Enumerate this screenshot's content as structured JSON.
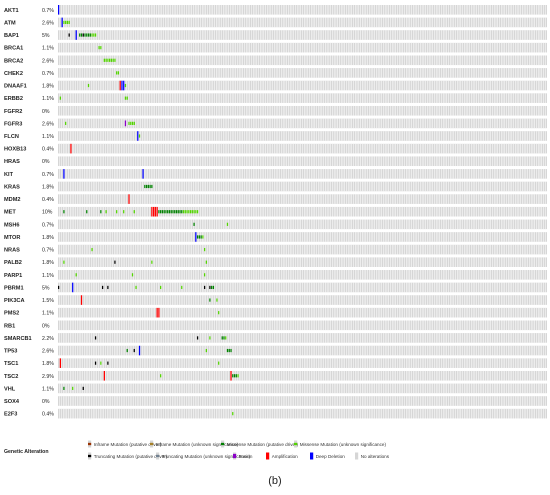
{
  "chart_data": {
    "type": "heatmap",
    "subtype": "oncoprint",
    "caption": "(b)",
    "genes": [
      {
        "name": "AKT1",
        "pct": "0.7%",
        "alterations": [
          {
            "x": 0,
            "type": "deep_deletion"
          }
        ]
      },
      {
        "name": "ATM",
        "pct": "2.6%",
        "alterations": [
          {
            "x": 2,
            "type": "deep_deletion"
          },
          {
            "x": 3,
            "type": "missense_unknown"
          },
          {
            "x": 4,
            "type": "missense_unknown"
          },
          {
            "x": 5,
            "type": "missense_unknown"
          },
          {
            "x": 6,
            "type": "missense_unknown"
          }
        ]
      },
      {
        "name": "BAP1",
        "pct": "5%",
        "alterations": [
          {
            "x": 6,
            "type": "truncating_driver"
          },
          {
            "x": 10,
            "type": "deep_deletion"
          },
          {
            "x": 12,
            "type": "missense_driver"
          },
          {
            "x": 13,
            "type": "missense_driver"
          },
          {
            "x": 14,
            "type": "truncating_driver"
          },
          {
            "x": 15,
            "type": "missense_driver"
          },
          {
            "x": 16,
            "type": "missense_driver"
          },
          {
            "x": 17,
            "type": "missense_driver"
          },
          {
            "x": 18,
            "type": "missense_driver"
          },
          {
            "x": 19,
            "type": "missense_unknown"
          },
          {
            "x": 20,
            "type": "missense_unknown"
          },
          {
            "x": 21,
            "type": "missense_unknown"
          }
        ]
      },
      {
        "name": "BRCA1",
        "pct": "1.1%",
        "alterations": [
          {
            "x": 23,
            "type": "missense_unknown"
          },
          {
            "x": 24,
            "type": "missense_unknown"
          }
        ]
      },
      {
        "name": "BRCA2",
        "pct": "2.6%",
        "alterations": [
          {
            "x": 26,
            "type": "missense_unknown"
          },
          {
            "x": 27,
            "type": "missense_unknown"
          },
          {
            "x": 28,
            "type": "missense_unknown"
          },
          {
            "x": 29,
            "type": "missense_unknown"
          },
          {
            "x": 30,
            "type": "missense_unknown"
          },
          {
            "x": 31,
            "type": "missense_unknown"
          },
          {
            "x": 32,
            "type": "missense_unknown"
          }
        ]
      },
      {
        "name": "CHEK2",
        "pct": "0.7%",
        "alterations": [
          {
            "x": 33,
            "type": "missense_unknown"
          },
          {
            "x": 34,
            "type": "missense_unknown"
          }
        ]
      },
      {
        "name": "DNAAF1",
        "pct": "1.8%",
        "alterations": [
          {
            "x": 17,
            "type": "missense_unknown"
          },
          {
            "x": 35,
            "type": "amplification"
          },
          {
            "x": 36,
            "type": "deep_deletion"
          },
          {
            "x": 37,
            "type": "deep_deletion"
          },
          {
            "x": 38,
            "type": "missense_unknown"
          }
        ]
      },
      {
        "name": "ERBB2",
        "pct": "1.1%",
        "alterations": [
          {
            "x": 1,
            "type": "missense_unknown"
          },
          {
            "x": 38,
            "type": "missense_unknown"
          },
          {
            "x": 39,
            "type": "missense_unknown"
          }
        ]
      },
      {
        "name": "FGFR2",
        "pct": "0%",
        "alterations": []
      },
      {
        "name": "FGFR3",
        "pct": "2.6%",
        "alterations": [
          {
            "x": 4,
            "type": "missense_unknown"
          },
          {
            "x": 38,
            "type": "fusion"
          },
          {
            "x": 40,
            "type": "missense_unknown"
          },
          {
            "x": 41,
            "type": "missense_unknown"
          },
          {
            "x": 42,
            "type": "missense_unknown"
          },
          {
            "x": 43,
            "type": "missense_unknown"
          }
        ]
      },
      {
        "name": "FLCN",
        "pct": "1.1%",
        "alterations": [
          {
            "x": 45,
            "type": "deep_deletion"
          },
          {
            "x": 46,
            "type": "missense_unknown"
          }
        ]
      },
      {
        "name": "HOXB13",
        "pct": "0.4%",
        "alterations": [
          {
            "x": 7,
            "type": "amplification"
          }
        ]
      },
      {
        "name": "HRAS",
        "pct": "0%",
        "alterations": []
      },
      {
        "name": "KIT",
        "pct": "0.7%",
        "alterations": [
          {
            "x": 3,
            "type": "deep_deletion"
          },
          {
            "x": 48,
            "type": "deep_deletion"
          }
        ]
      },
      {
        "name": "KRAS",
        "pct": "1.8%",
        "alterations": [
          {
            "x": 49,
            "type": "missense_driver"
          },
          {
            "x": 50,
            "type": "missense_driver"
          },
          {
            "x": 51,
            "type": "missense_driver"
          },
          {
            "x": 52,
            "type": "missense_driver"
          },
          {
            "x": 53,
            "type": "missense_driver"
          }
        ]
      },
      {
        "name": "MDM2",
        "pct": "0.4%",
        "alterations": [
          {
            "x": 40,
            "type": "amplification"
          }
        ]
      },
      {
        "name": "MET",
        "pct": "10%",
        "alterations": [
          {
            "x": 3,
            "type": "missense_driver"
          },
          {
            "x": 16,
            "type": "missense_driver"
          },
          {
            "x": 24,
            "type": "missense_driver"
          },
          {
            "x": 27,
            "type": "missense_unknown"
          },
          {
            "x": 33,
            "type": "missense_unknown"
          },
          {
            "x": 37,
            "type": "missense_unknown"
          },
          {
            "x": 43,
            "type": "missense_unknown"
          },
          {
            "x": 53,
            "type": "amplification"
          },
          {
            "x": 54,
            "type": "amplification"
          },
          {
            "x": 55,
            "type": "amplification"
          },
          {
            "x": 56,
            "type": "amplification"
          },
          {
            "x": 57,
            "type": "missense_driver"
          },
          {
            "x": 58,
            "type": "missense_driver"
          },
          {
            "x": 59,
            "type": "missense_driver"
          },
          {
            "x": 60,
            "type": "missense_driver"
          },
          {
            "x": 61,
            "type": "missense_driver"
          },
          {
            "x": 62,
            "type": "missense_driver"
          },
          {
            "x": 63,
            "type": "missense_driver"
          },
          {
            "x": 64,
            "type": "missense_driver"
          },
          {
            "x": 65,
            "type": "missense_driver"
          },
          {
            "x": 66,
            "type": "missense_driver"
          },
          {
            "x": 67,
            "type": "missense_driver"
          },
          {
            "x": 68,
            "type": "missense_driver"
          },
          {
            "x": 69,
            "type": "missense_driver"
          },
          {
            "x": 70,
            "type": "missense_driver"
          },
          {
            "x": 71,
            "type": "missense_unknown"
          },
          {
            "x": 72,
            "type": "missense_unknown"
          },
          {
            "x": 73,
            "type": "missense_unknown"
          },
          {
            "x": 74,
            "type": "missense_unknown"
          },
          {
            "x": 75,
            "type": "missense_unknown"
          },
          {
            "x": 76,
            "type": "missense_unknown"
          },
          {
            "x": 77,
            "type": "missense_unknown"
          },
          {
            "x": 78,
            "type": "missense_unknown"
          },
          {
            "x": 79,
            "type": "missense_unknown"
          }
        ]
      },
      {
        "name": "MSH6",
        "pct": "0.7%",
        "alterations": [
          {
            "x": 77,
            "type": "missense_driver"
          },
          {
            "x": 96,
            "type": "missense_unknown"
          }
        ]
      },
      {
        "name": "MTOR",
        "pct": "1.8%",
        "alterations": [
          {
            "x": 78,
            "type": "deep_deletion"
          },
          {
            "x": 79,
            "type": "missense_driver"
          },
          {
            "x": 80,
            "type": "missense_driver"
          },
          {
            "x": 81,
            "type": "missense_driver"
          },
          {
            "x": 82,
            "type": "missense_unknown"
          }
        ]
      },
      {
        "name": "NRAS",
        "pct": "0.7%",
        "alterations": [
          {
            "x": 19,
            "type": "missense_unknown"
          },
          {
            "x": 83,
            "type": "missense_unknown"
          }
        ]
      },
      {
        "name": "PALB2",
        "pct": "1.8%",
        "alterations": [
          {
            "x": 3,
            "type": "missense_unknown"
          },
          {
            "x": 32,
            "type": "truncating_driver"
          },
          {
            "x": 53,
            "type": "missense_unknown"
          },
          {
            "x": 84,
            "type": "missense_unknown"
          }
        ]
      },
      {
        "name": "PARP1",
        "pct": "1.1%",
        "alterations": [
          {
            "x": 10,
            "type": "missense_unknown"
          },
          {
            "x": 42,
            "type": "missense_unknown"
          },
          {
            "x": 83,
            "type": "missense_unknown"
          }
        ]
      },
      {
        "name": "PBRM1",
        "pct": "5%",
        "alterations": [
          {
            "x": 0,
            "type": "truncating_driver"
          },
          {
            "x": 8,
            "type": "deep_deletion"
          },
          {
            "x": 25,
            "type": "truncating_driver"
          },
          {
            "x": 28,
            "type": "truncating_driver"
          },
          {
            "x": 44,
            "type": "missense_unknown"
          },
          {
            "x": 58,
            "type": "missense_unknown"
          },
          {
            "x": 70,
            "type": "missense_unknown"
          },
          {
            "x": 83,
            "type": "truncating_driver"
          },
          {
            "x": 86,
            "type": "truncating_driver"
          },
          {
            "x": 87,
            "type": "missense_driver"
          },
          {
            "x": 88,
            "type": "missense_driver"
          }
        ]
      },
      {
        "name": "PIK3CA",
        "pct": "1.5%",
        "alterations": [
          {
            "x": 13,
            "type": "amplification"
          },
          {
            "x": 86,
            "type": "missense_driver"
          },
          {
            "x": 90,
            "type": "missense_unknown"
          }
        ]
      },
      {
        "name": "PMS2",
        "pct": "1.1%",
        "alterations": [
          {
            "x": 56,
            "type": "amplification"
          },
          {
            "x": 57,
            "type": "amplification"
          },
          {
            "x": 91,
            "type": "missense_unknown"
          }
        ]
      },
      {
        "name": "RB1",
        "pct": "0%",
        "alterations": []
      },
      {
        "name": "SMARCB1",
        "pct": "2.2%",
        "alterations": [
          {
            "x": 21,
            "type": "truncating_driver"
          },
          {
            "x": 79,
            "type": "truncating_driver"
          },
          {
            "x": 86,
            "type": "missense_unknown"
          },
          {
            "x": 93,
            "type": "missense_driver"
          },
          {
            "x": 94,
            "type": "missense_driver"
          },
          {
            "x": 95,
            "type": "missense_unknown"
          }
        ]
      },
      {
        "name": "TP53",
        "pct": "2.6%",
        "alterations": [
          {
            "x": 39,
            "type": "missense_driver"
          },
          {
            "x": 43,
            "type": "truncating_driver"
          },
          {
            "x": 46,
            "type": "deep_deletion"
          },
          {
            "x": 84,
            "type": "missense_unknown"
          },
          {
            "x": 96,
            "type": "missense_driver"
          },
          {
            "x": 97,
            "type": "missense_driver"
          },
          {
            "x": 98,
            "type": "missense_driver"
          }
        ]
      },
      {
        "name": "TSC1",
        "pct": "1.8%",
        "alterations": [
          {
            "x": 1,
            "type": "amplification"
          },
          {
            "x": 21,
            "type": "truncating_driver"
          },
          {
            "x": 24,
            "type": "missense_unknown"
          },
          {
            "x": 28,
            "type": "truncating_driver"
          },
          {
            "x": 91,
            "type": "missense_unknown"
          }
        ]
      },
      {
        "name": "TSC2",
        "pct": "2.9%",
        "alterations": [
          {
            "x": 26,
            "type": "amplification"
          },
          {
            "x": 58,
            "type": "missense_unknown"
          },
          {
            "x": 98,
            "type": "amplification"
          },
          {
            "x": 99,
            "type": "missense_driver"
          },
          {
            "x": 100,
            "type": "missense_driver"
          },
          {
            "x": 101,
            "type": "missense_driver"
          },
          {
            "x": 102,
            "type": "missense_unknown"
          }
        ]
      },
      {
        "name": "VHL",
        "pct": "1.1%",
        "alterations": [
          {
            "x": 3,
            "type": "missense_driver"
          },
          {
            "x": 8,
            "type": "missense_unknown"
          },
          {
            "x": 14,
            "type": "truncating_driver"
          }
        ]
      },
      {
        "name": "SOX4",
        "pct": "0%",
        "alterations": []
      },
      {
        "name": "E2F3",
        "pct": "0.4%",
        "alterations": [
          {
            "x": 99,
            "type": "missense_unknown"
          }
        ]
      }
    ],
    "legend": {
      "title": "Genetic Alteration",
      "items": [
        {
          "key": "inframe_driver",
          "label": "Inframe Mutation (putative driver)",
          "color": "#993404"
        },
        {
          "key": "inframe_unknown",
          "label": "Inframe Mutation (unknown significance)",
          "color": "#a68028"
        },
        {
          "key": "missense_driver",
          "label": "Missense Mutation (putative driver)",
          "color": "#008000"
        },
        {
          "key": "missense_unknown",
          "label": "Missense Mutation (unknown significance)",
          "color": "#53d400"
        },
        {
          "key": "truncating_driver",
          "label": "Truncating Mutation (putative driver)",
          "color": "#000000"
        },
        {
          "key": "truncating_unknown",
          "label": "Truncating Mutation (unknown significance)",
          "color": "#708090"
        },
        {
          "key": "fusion",
          "label": "Fusion",
          "color": "#8b00c9"
        },
        {
          "key": "amplification",
          "label": "Amplification",
          "color": "#ff0000"
        },
        {
          "key": "deep_deletion",
          "label": "Deep Deletion",
          "color": "#0000ff"
        },
        {
          "key": "no_alteration",
          "label": "No alterations",
          "color": "#d6d6d6"
        }
      ]
    },
    "background_color": "#d6d6d6",
    "samples_count": 278
  }
}
